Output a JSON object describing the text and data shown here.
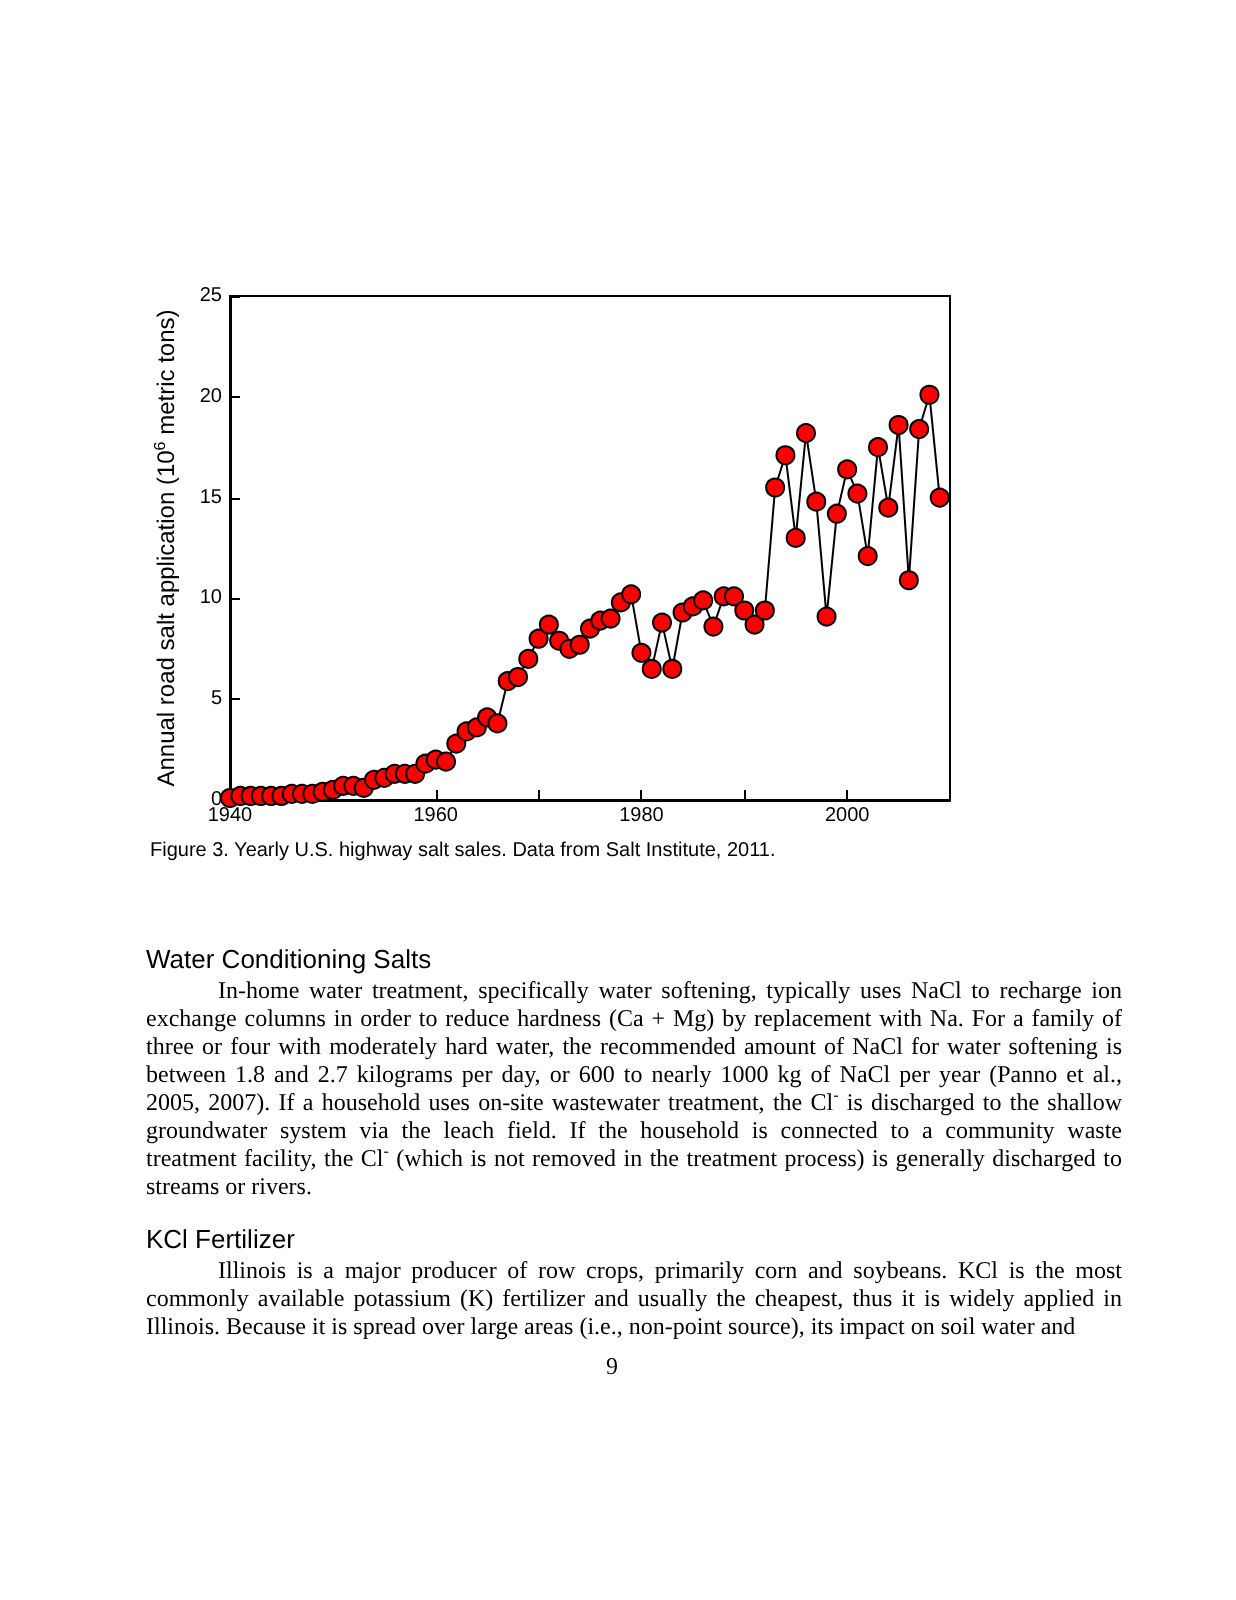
{
  "chart_data": {
    "type": "line",
    "ylabel": "Annual road salt application (10$^{6}$ metric tons)",
    "x": [
      1940,
      1941,
      1942,
      1943,
      1944,
      1945,
      1946,
      1947,
      1948,
      1949,
      1950,
      1951,
      1952,
      1953,
      1954,
      1955,
      1956,
      1957,
      1958,
      1959,
      1960,
      1961,
      1962,
      1963,
      1964,
      1965,
      1966,
      1967,
      1968,
      1969,
      1970,
      1971,
      1972,
      1973,
      1974,
      1975,
      1976,
      1977,
      1978,
      1979,
      1980,
      1981,
      1982,
      1983,
      1984,
      1985,
      1986,
      1987,
      1988,
      1989,
      1990,
      1991,
      1992,
      1993,
      1994,
      1995,
      1996,
      1997,
      1998,
      1999,
      2000,
      2001,
      2002,
      2003,
      2004,
      2005,
      2006,
      2007,
      2008,
      2009
    ],
    "series": [
      {
        "color": "#ff0000",
        "values": [
          0.1,
          0.2,
          0.2,
          0.2,
          0.2,
          0.2,
          0.3,
          0.3,
          0.3,
          0.4,
          0.5,
          0.7,
          0.7,
          0.6,
          1.0,
          1.1,
          1.3,
          1.3,
          1.3,
          1.8,
          2.0,
          1.9,
          2.8,
          3.4,
          3.6,
          4.1,
          3.8,
          5.9,
          6.1,
          7.0,
          8.0,
          8.7,
          7.9,
          7.5,
          7.7,
          8.5,
          8.9,
          9.0,
          9.8,
          10.2,
          7.3,
          6.5,
          8.8,
          6.5,
          9.3,
          9.6,
          9.9,
          8.6,
          10.1,
          10.1,
          9.4,
          8.7,
          9.4,
          15.5,
          17.1,
          13.0,
          18.2,
          14.8,
          9.1,
          14.2,
          16.4,
          15.2,
          12.1,
          17.5,
          14.5,
          18.6,
          10.9,
          18.4,
          20.1,
          15.0
        ]
      }
    ],
    "xlim": [
      1940,
      2010
    ],
    "xticks": [
      1940,
      {
        "value": 1950,
        "label": null
      },
      1960,
      {
        "value": 1970,
        "label": null
      },
      1980,
      {
        "value": 1990,
        "label": null
      },
      2000
    ],
    "ylim": [
      0,
      25
    ],
    "yticks": [
      0,
      5,
      10,
      15,
      20,
      25
    ],
    "marker": "circle",
    "line_style": "solid",
    "grid": false,
    "annotations": [
      "Figure 3. Yearly U.S. highway salt sales. Data from Salt Institute, 2011.",
      "Water Conditioning Salts",
      "In-home water treatment, specifically water softening, typically uses NaCl to recharge ion exchange columns in order to reduce hardness (Ca + Mg) by replacement with Na. For a family of three or four with moderately hard water, the recommended amount of NaCl for water softening is between 1.8 and 2.7 kilograms per day, or 600 to nearly 1000 kg of NaCl per year (Panno et al., 2005, 2007). If a household uses on-site wastewater treatment, the Cl$^{-}$ is discharged to the shallow groundwater system via the leach field. If the household is connected to a community waste treatment facility, the Cl$^{-}$ (which is not removed in the treatment process) is generally discharged to streams or rivers.",
      "KCl Fertilizer",
      "Illinois is a major producer of row crops, primarily corn and soybeans. KCl is the most commonly available potassium (K) fertilizer and usually the cheapest, thus it is widely applied in Illinois. Because it is spread over large areas (i.e., non-point source), its impact on soil water and",
      "9"
    ]
  }
}
